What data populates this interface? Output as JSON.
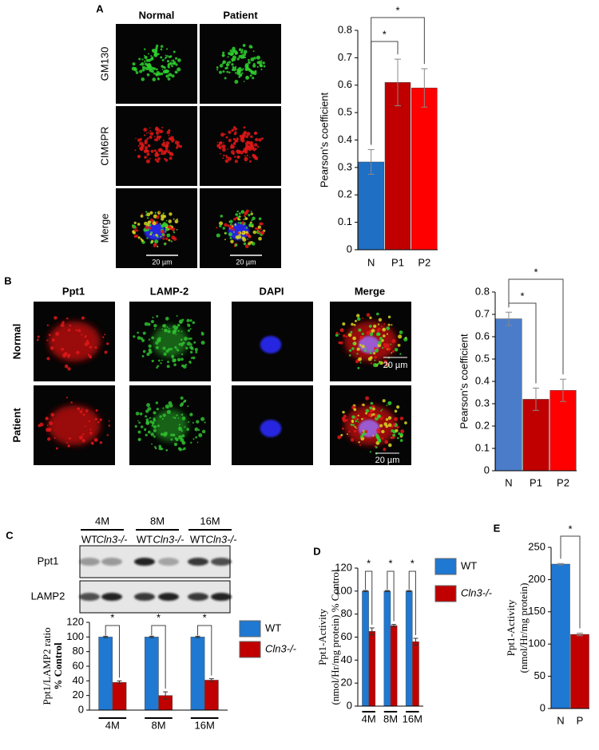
{
  "figure": {
    "panel_labels": [
      "A",
      "B",
      "C",
      "D",
      "E"
    ],
    "a_columns": [
      "Normal",
      "Patient"
    ],
    "a_rows": [
      "GM130",
      "CIM6PR",
      "Merge"
    ],
    "a_scale": [
      "20 µm",
      "20 µm"
    ],
    "b_columns": [
      "Ppt1",
      "LAMP-2",
      "DAPI",
      "Merge"
    ],
    "b_rows": [
      "Normal",
      "Patient"
    ],
    "b_scale": [
      "20 µm",
      "20 µm"
    ],
    "c_ages": [
      "4M",
      "8M",
      "16M"
    ],
    "c_lanes": [
      "WT",
      "Cln3-/-",
      "WT",
      "Cln3-/-",
      "WT",
      "Cln3-/-"
    ],
    "c_blots": [
      "Ppt1",
      "LAMP2"
    ]
  },
  "chart_data": [
    {
      "type": "bar",
      "ylabel": [
        "Pearson's coefficient"
      ],
      "categories": [
        "N",
        "P1",
        "P2"
      ],
      "values": [
        0.32,
        0.61,
        0.59
      ],
      "errors": [
        0.045,
        0.085,
        0.07
      ],
      "colors": [
        "#1f6fc5",
        "#c00000",
        "#ff0000"
      ],
      "ylim": [
        0,
        0.8
      ],
      "yticks": [
        0,
        0.1,
        0.2,
        0.3,
        0.4,
        0.5,
        0.6,
        0.7,
        0.8
      ],
      "annotations": [
        "*",
        "*"
      ]
    },
    {
      "type": "bar",
      "ylabel": [
        "Pearson's coefficient"
      ],
      "categories": [
        "N",
        "P1",
        "P2"
      ],
      "values": [
        0.68,
        0.32,
        0.36
      ],
      "errors": [
        0.03,
        0.05,
        0.05
      ],
      "colors": [
        "#4a7cc9",
        "#c00000",
        "#ff0000"
      ],
      "ylim": [
        0,
        0.8
      ],
      "yticks": [
        0,
        0.1,
        0.2,
        0.3,
        0.4,
        0.5,
        0.6,
        0.7,
        0.8
      ],
      "annotations": [
        "*",
        "*"
      ]
    },
    {
      "type": "grouped-bar",
      "ylabel": [
        "Ppt1/LAMP2 ratio",
        "% Control"
      ],
      "categories": [
        "4M",
        "8M",
        "16M"
      ],
      "series": [
        {
          "name": "WT",
          "color": "#1f78d1",
          "values": [
            100,
            100,
            100
          ],
          "errors": [
            1,
            1,
            1
          ]
        },
        {
          "name": "Cln3-/-",
          "color": "#c00000",
          "values": [
            38,
            20,
            41
          ],
          "errors": [
            2,
            5,
            2
          ]
        }
      ],
      "ylim": [
        0,
        120
      ],
      "yticks": [
        0,
        20,
        40,
        60,
        80,
        100,
        120
      ],
      "annotations": [
        "*",
        "*",
        "*"
      ]
    },
    {
      "type": "grouped-bar",
      "ylabel": [
        "Ppt1-Activity",
        "(nmol/Hr/mg protein) % Control"
      ],
      "categories": [
        "4M",
        "8M",
        "16M"
      ],
      "series": [
        {
          "name": "WT",
          "color": "#1f78d1",
          "values": [
            100,
            100,
            100
          ],
          "errors": [
            0.5,
            0.5,
            0.5
          ]
        },
        {
          "name": "Cln3-/-",
          "color": "#c00000",
          "values": [
            65,
            70,
            56
          ],
          "errors": [
            3,
            1,
            3
          ]
        }
      ],
      "ylim": [
        0,
        120
      ],
      "yticks": [
        0,
        20,
        40,
        60,
        80,
        100,
        120
      ],
      "annotations": [
        "*",
        "*",
        "*"
      ]
    },
    {
      "type": "bar",
      "ylabel": [
        "Ppt1-Activity",
        "(nmol/Hr/mg protein)"
      ],
      "categories": [
        "N",
        "P"
      ],
      "values": [
        224,
        115
      ],
      "errors": [
        1,
        2
      ],
      "colors": [
        "#1f78d1",
        "#c00000"
      ],
      "ylim": [
        0,
        250
      ],
      "yticks": [
        0,
        50,
        100,
        150,
        200,
        250
      ],
      "annotations": [
        "*"
      ]
    }
  ]
}
